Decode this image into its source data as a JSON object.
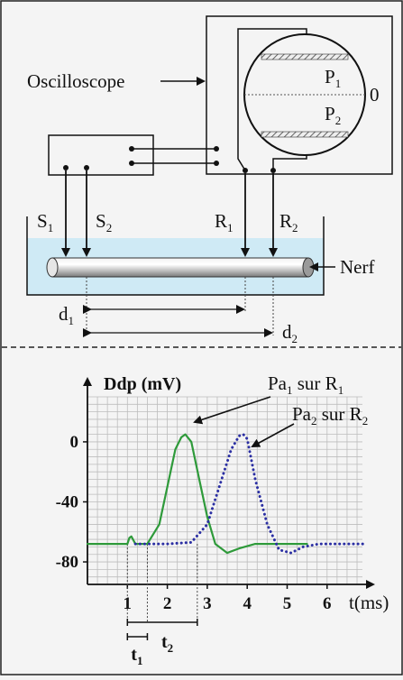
{
  "setup": {
    "oscilloscope_label": "Oscilloscope",
    "zero_label": "0",
    "plate1": {
      "main": "P",
      "sub": "1"
    },
    "plate2": {
      "main": "P",
      "sub": "2"
    },
    "S1": {
      "main": "S",
      "sub": "1"
    },
    "S2": {
      "main": "S",
      "sub": "2"
    },
    "R1": {
      "main": "R",
      "sub": "1"
    },
    "R2": {
      "main": "R",
      "sub": "2"
    },
    "nerf_label": "Nerf",
    "d1": {
      "main": "d",
      "sub": "1"
    },
    "d2": {
      "main": "d",
      "sub": "2"
    }
  },
  "chart_data": {
    "type": "line",
    "ylabel": "Ddp (mV)",
    "xlabel": "t(ms)",
    "x_ticks": [
      "1",
      "2",
      "3",
      "4",
      "5",
      "6"
    ],
    "y_ticks": [
      "0",
      "-40",
      "-80"
    ],
    "xlim": [
      0,
      7.2
    ],
    "ylim": [
      -95,
      30
    ],
    "grid": true,
    "series": [
      {
        "name_main": "Pa",
        "name_sub1": "1",
        "name_mid": " sur R",
        "name_sub2": "1",
        "style": "solid",
        "color": "#2e9a3a",
        "x": [
          0,
          1.0,
          1.05,
          1.1,
          1.2,
          1.5,
          1.8,
          2.0,
          2.2,
          2.35,
          2.45,
          2.6,
          2.8,
          3.0,
          3.2,
          3.5,
          3.8,
          4.2,
          4.6,
          5.0,
          5.5
        ],
        "y": [
          -68,
          -68,
          -64,
          -63,
          -68,
          -68,
          -55,
          -30,
          -5,
          3,
          5,
          0,
          -25,
          -50,
          -68,
          -74,
          -71,
          -68,
          -68,
          -68,
          -68
        ]
      },
      {
        "name_main": "Pa",
        "name_sub1": "2",
        "name_mid": " sur R",
        "name_sub2": "2",
        "style": "dotted",
        "color": "#2b2fa3",
        "x": [
          1.2,
          2.0,
          2.6,
          3.0,
          3.3,
          3.6,
          3.8,
          3.9,
          4.0,
          4.2,
          4.5,
          4.8,
          5.1,
          5.4,
          5.8,
          6.5,
          7.0
        ],
        "y": [
          -68,
          -68,
          -67,
          -55,
          -30,
          -5,
          4,
          5,
          2,
          -25,
          -55,
          -72,
          -74,
          -70,
          -68,
          -68,
          -68
        ]
      }
    ],
    "markers": {
      "t1": {
        "main": "t",
        "sub": "1"
      },
      "t2": {
        "main": "t",
        "sub": "2"
      }
    }
  },
  "colors": {
    "green": "#2e9a3a",
    "blue": "#2b2fa3",
    "water": "#cfeaf5",
    "grid": "#bdbdbd"
  }
}
